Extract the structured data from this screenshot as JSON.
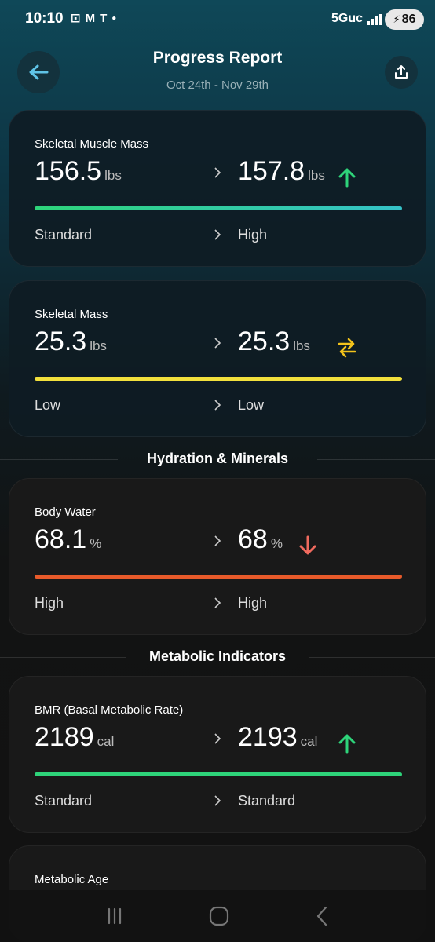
{
  "status_bar": {
    "time": "10:10",
    "network": "5Guc",
    "battery": "86"
  },
  "header": {
    "title": "Progress Report",
    "date_range": "Oct 24th - Nov 29th"
  },
  "cards": [
    {
      "label": "Skeletal Muscle Mass",
      "from_value": "156.5",
      "from_unit": "lbs",
      "to_value": "157.8",
      "to_unit": "lbs",
      "trend": "up-arrow-icon",
      "from_status": "Standard",
      "to_status": "High",
      "bar_color": "#2ed47a",
      "bar_color_end": "#35c2c8"
    },
    {
      "label": "Skeletal Mass",
      "from_value": "25.3",
      "from_unit": "lbs",
      "to_value": "25.3",
      "to_unit": "lbs",
      "trend": "swap-arrows-icon",
      "from_status": "Low",
      "to_status": "Low",
      "bar_color": "#f2e03c"
    },
    {
      "label": "Body Water",
      "from_value": "68.1",
      "from_unit": "%",
      "to_value": "68",
      "to_unit": "%",
      "trend": "down-arrow-icon",
      "from_status": "High",
      "to_status": "High",
      "bar_color": "#e85a2a"
    },
    {
      "label": "BMR (Basal Metabolic Rate)",
      "from_value": "2189",
      "from_unit": "cal",
      "to_value": "2193",
      "to_unit": "cal",
      "trend": "up-arrow-icon",
      "from_status": "Standard",
      "to_status": "Standard",
      "bar_color": "#2ed47a"
    },
    {
      "label": "Metabolic Age"
    }
  ],
  "sections": {
    "hydration": "Hydration & Minerals",
    "metabolic": "Metabolic Indicators"
  },
  "colors": {
    "up": "#2ed47a",
    "down": "#f06a5e",
    "swap": "#f2c21b"
  }
}
